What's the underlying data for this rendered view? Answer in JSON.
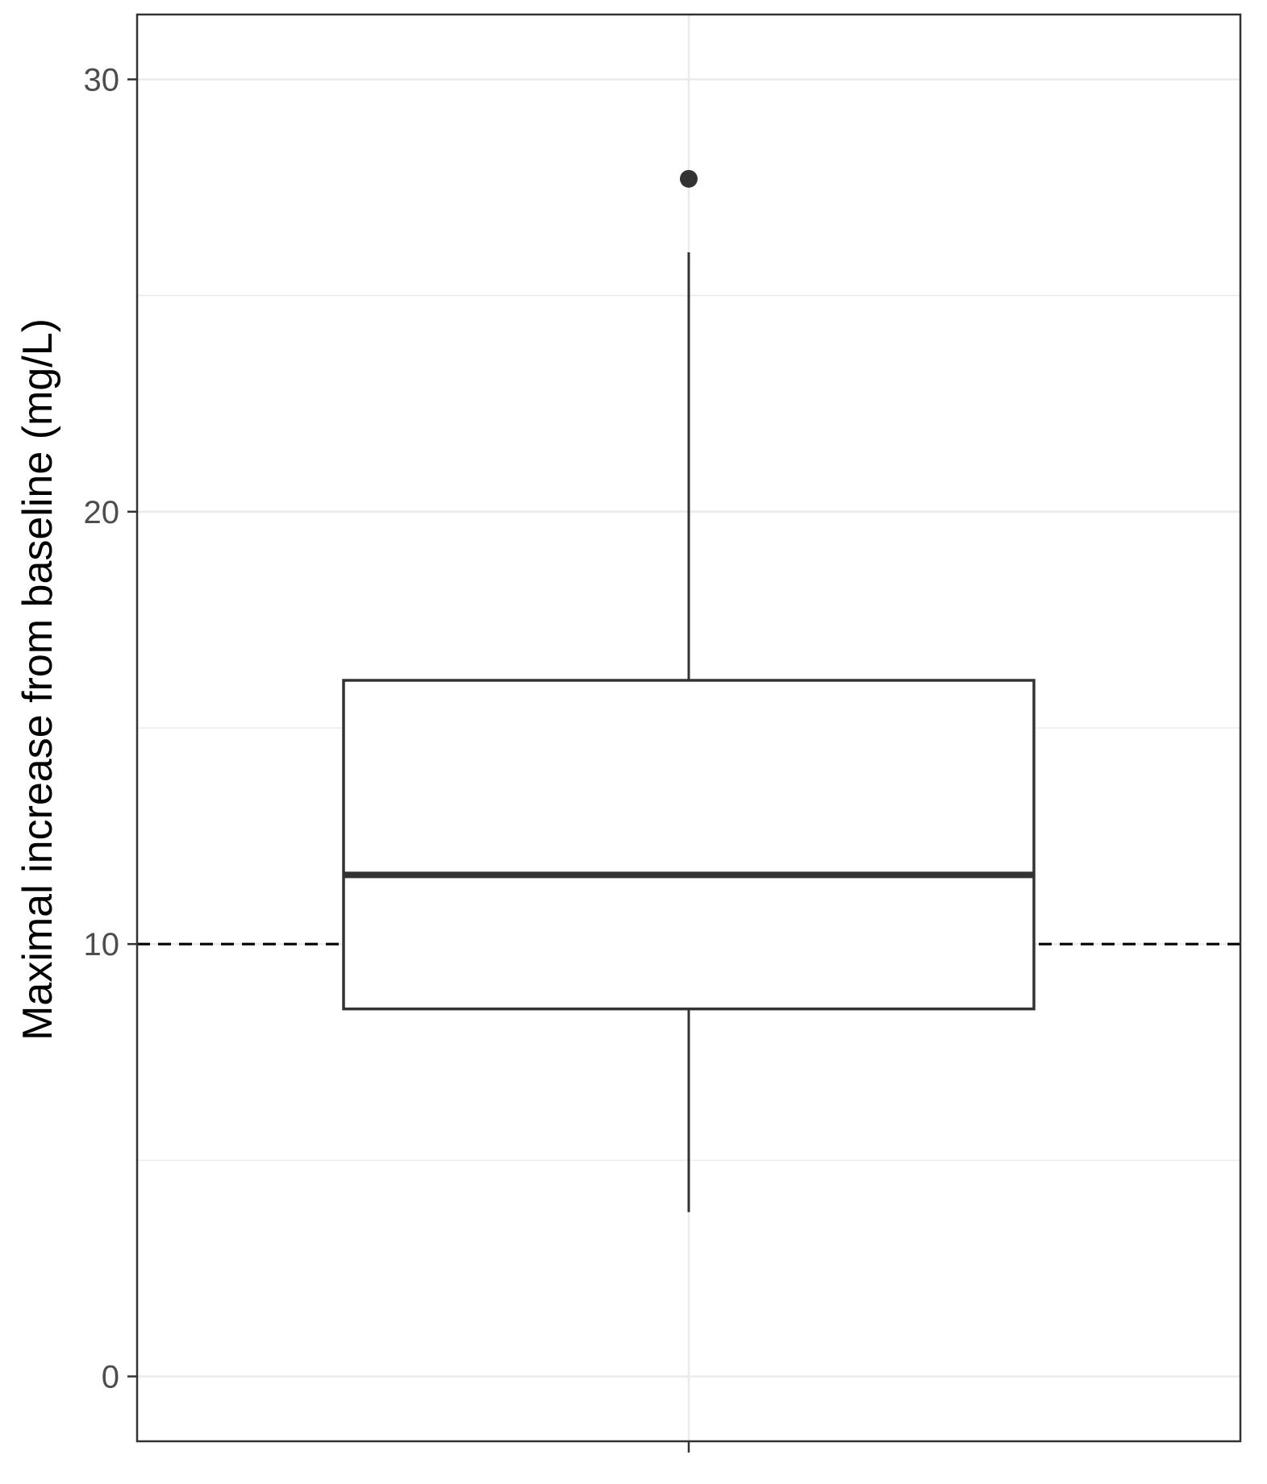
{
  "chart_data": {
    "type": "box",
    "title": "",
    "xlabel": "",
    "ylabel": "Maximal increase from baseline (mg/L)",
    "ylim": [
      -1.5,
      31.5
    ],
    "yticks": [
      0,
      10,
      20,
      30
    ],
    "ytick_labels": [
      "0",
      "10",
      "20",
      "30"
    ],
    "grid": true,
    "reference_line": {
      "y": 10,
      "style": "dashed"
    },
    "series": [
      {
        "whisker_low": 3.8,
        "q1": 8.5,
        "median": 11.6,
        "q3": 16.1,
        "whisker_high": 26.0,
        "outliers": [
          27.7
        ]
      }
    ]
  },
  "colors": {
    "box_stroke": "#333333",
    "grid": "#ebebeb",
    "panel_border": "#333333",
    "tick_label": "#4d4d4d",
    "axis_title": "#000000"
  }
}
